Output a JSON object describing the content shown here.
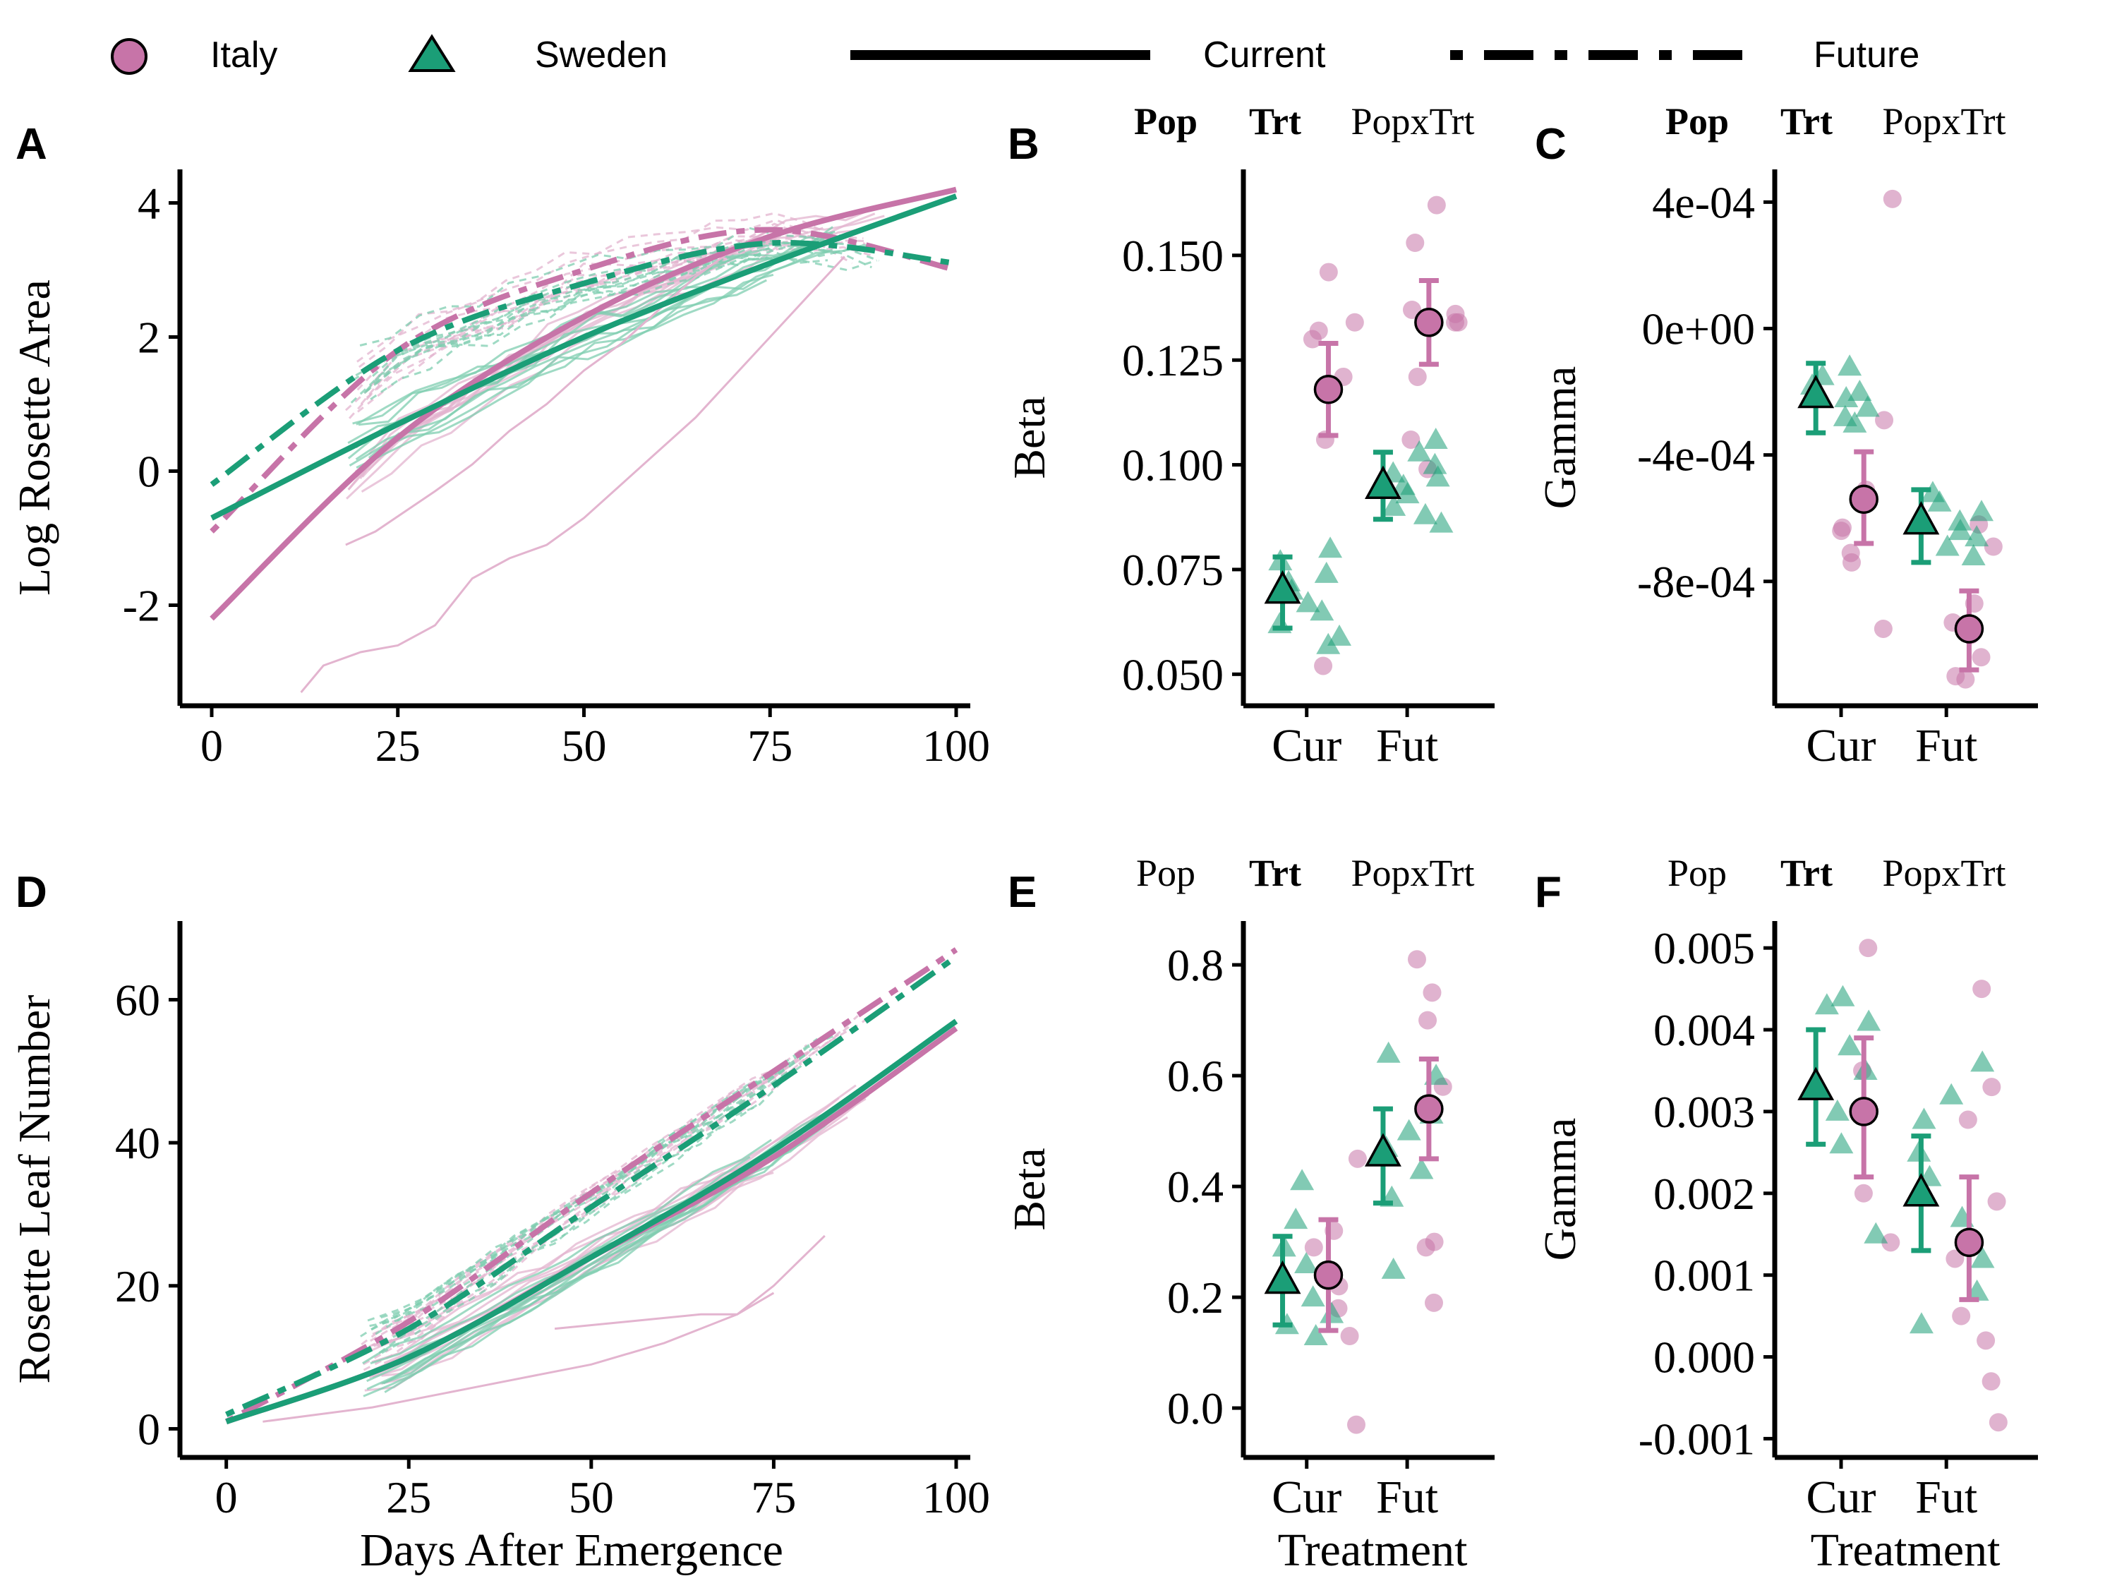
{
  "legend": {
    "italy": "Italy",
    "sweden": "Sweden",
    "current": "Current",
    "future": "Future"
  },
  "colors": {
    "italy": "#c774a8",
    "italy_light": "#e3b4cf",
    "sweden": "#1b9e77",
    "sweden_light": "#7fcdb0"
  },
  "x_label": "Days After Emergence",
  "treatment_label": "Treatment",
  "chart_data": [
    {
      "panel": "A",
      "type": "line",
      "ylabel": "Log Rosette Area",
      "xlim": [
        0,
        100
      ],
      "ylim": [
        -3.5,
        4.5
      ],
      "xticks": [
        "0",
        "25",
        "50",
        "75",
        "100"
      ],
      "yticks": [
        "-2",
        "0",
        "2",
        "4"
      ],
      "series": [
        {
          "name": "Italy",
          "treatment": "Current",
          "x": [
            0,
            25,
            50,
            75,
            100
          ],
          "y": [
            -2.2,
            0.5,
            2.3,
            3.5,
            4.2
          ]
        },
        {
          "name": "Italy",
          "treatment": "Future",
          "x": [
            0,
            25,
            50,
            75,
            100
          ],
          "y": [
            -0.9,
            1.8,
            3.0,
            3.6,
            3.0
          ]
        },
        {
          "name": "Sweden",
          "treatment": "Current",
          "x": [
            0,
            25,
            50,
            75,
            100
          ],
          "y": [
            -0.7,
            0.7,
            2.0,
            3.1,
            4.1
          ]
        },
        {
          "name": "Sweden",
          "treatment": "Future",
          "x": [
            0,
            25,
            50,
            75,
            100
          ],
          "y": [
            -0.2,
            1.8,
            2.8,
            3.4,
            3.1
          ]
        }
      ]
    },
    {
      "panel": "B",
      "type": "scatter",
      "ylabel": "Beta",
      "categories": [
        "Cur",
        "Fut"
      ],
      "ylim": [
        0.045,
        0.168
      ],
      "yticks": [
        "0.050",
        "0.075",
        "0.100",
        "0.125",
        "0.150"
      ],
      "sig": [
        "Pop",
        "Trt",
        "PopxTrt"
      ],
      "sig_bold": [
        true,
        true,
        false
      ],
      "means": [
        {
          "name": "Sweden",
          "category": "Cur",
          "mean": 0.07,
          "lo": 0.061,
          "hi": 0.078
        },
        {
          "name": "Italy",
          "category": "Cur",
          "mean": 0.118,
          "lo": 0.107,
          "hi": 0.129
        },
        {
          "name": "Sweden",
          "category": "Fut",
          "mean": 0.095,
          "lo": 0.087,
          "hi": 0.103
        },
        {
          "name": "Italy",
          "category": "Fut",
          "mean": 0.134,
          "lo": 0.124,
          "hi": 0.144
        }
      ],
      "points": {
        "Italy": {
          "Cur": [
            0.146,
            0.134,
            0.13,
            0.132,
            0.121,
            0.106,
            0.052
          ],
          "Fut": [
            0.162,
            0.153,
            0.137,
            0.136,
            0.134,
            0.134,
            0.121,
            0.106,
            0.099
          ]
        },
        "Sweden": {
          "Cur": [
            0.08,
            0.077,
            0.074,
            0.072,
            0.07,
            0.067,
            0.065,
            0.062,
            0.059,
            0.057
          ],
          "Fut": [
            0.106,
            0.103,
            0.1,
            0.098,
            0.097,
            0.095,
            0.093,
            0.09,
            0.088,
            0.086
          ]
        }
      }
    },
    {
      "panel": "C",
      "type": "scatter",
      "ylabel": "Gamma",
      "categories": [
        "Cur",
        "Fut"
      ],
      "ylim": [
        -0.00116,
        0.00047
      ],
      "yticks": [
        "4e-04",
        "0e+00",
        "-4e-04",
        "-8e-04"
      ],
      "sig": [
        "Pop",
        "Trt",
        "PopxTrt"
      ],
      "sig_bold": [
        true,
        true,
        false
      ],
      "means": [
        {
          "name": "Sweden",
          "category": "Cur",
          "mean": -0.00021,
          "lo": -0.00033,
          "hi": -0.00011
        },
        {
          "name": "Italy",
          "category": "Cur",
          "mean": -0.00054,
          "lo": -0.00068,
          "hi": -0.00039
        },
        {
          "name": "Sweden",
          "category": "Fut",
          "mean": -0.00061,
          "lo": -0.00074,
          "hi": -0.00051
        },
        {
          "name": "Italy",
          "category": "Fut",
          "mean": -0.00095,
          "lo": -0.00108,
          "hi": -0.00083
        }
      ],
      "points": {
        "Italy": {
          "Cur": [
            0.00041,
            -0.00029,
            -0.00051,
            -0.00063,
            -0.00064,
            -0.00071,
            -0.00074,
            -0.00095
          ],
          "Fut": [
            -0.00062,
            -0.00069,
            -0.00087,
            -0.00093,
            -0.00097,
            -0.00104,
            -0.0011,
            -0.00111
          ]
        },
        "Sweden": {
          "Cur": [
            -0.00012,
            -0.00015,
            -0.00018,
            -0.0002,
            -0.00022,
            -0.00025,
            -0.00028,
            -0.0003
          ],
          "Fut": [
            -0.00052,
            -0.00055,
            -0.00058,
            -0.00061,
            -0.00064,
            -0.00066,
            -0.00069,
            -0.00072
          ]
        }
      }
    },
    {
      "panel": "D",
      "type": "line",
      "ylabel": "Rosette Leaf Number",
      "xlim": [
        -2,
        100
      ],
      "ylim": [
        -4,
        71
      ],
      "xticks": [
        "0",
        "25",
        "50",
        "75",
        "100"
      ],
      "yticks": [
        "0",
        "20",
        "40",
        "60"
      ],
      "series": [
        {
          "name": "Italy",
          "treatment": "Current",
          "x": [
            0,
            25,
            50,
            75,
            100
          ],
          "y": [
            1,
            10,
            24,
            38,
            56
          ]
        },
        {
          "name": "Italy",
          "treatment": "Future",
          "x": [
            0,
            25,
            50,
            75,
            100
          ],
          "y": [
            1,
            15,
            33,
            50,
            67
          ]
        },
        {
          "name": "Sweden",
          "treatment": "Current",
          "x": [
            0,
            25,
            50,
            75,
            100
          ],
          "y": [
            1,
            10,
            24,
            39,
            57
          ]
        },
        {
          "name": "Sweden",
          "treatment": "Future",
          "x": [
            0,
            25,
            50,
            75,
            100
          ],
          "y": [
            2,
            14,
            31,
            48,
            66
          ]
        }
      ]
    },
    {
      "panel": "E",
      "type": "scatter",
      "ylabel": "Beta",
      "categories": [
        "Cur",
        "Fut"
      ],
      "ylim": [
        -0.07,
        0.86
      ],
      "yticks": [
        "0.0",
        "0.2",
        "0.4",
        "0.6",
        "0.8"
      ],
      "sig": [
        "Pop",
        "Trt",
        "PopxTrt"
      ],
      "sig_bold": [
        false,
        true,
        false
      ],
      "means": [
        {
          "name": "Sweden",
          "category": "Cur",
          "mean": 0.23,
          "lo": 0.15,
          "hi": 0.31
        },
        {
          "name": "Italy",
          "category": "Cur",
          "mean": 0.24,
          "lo": 0.14,
          "hi": 0.34
        },
        {
          "name": "Sweden",
          "category": "Fut",
          "mean": 0.46,
          "lo": 0.37,
          "hi": 0.54
        },
        {
          "name": "Italy",
          "category": "Fut",
          "mean": 0.54,
          "lo": 0.45,
          "hi": 0.63
        }
      ],
      "points": {
        "Italy": {
          "Cur": [
            0.45,
            0.32,
            0.29,
            0.22,
            0.18,
            0.13,
            -0.03
          ],
          "Fut": [
            0.81,
            0.75,
            0.7,
            0.58,
            0.3,
            0.29,
            0.19
          ]
        },
        "Sweden": {
          "Cur": [
            0.41,
            0.34,
            0.29,
            0.26,
            0.2,
            0.17,
            0.15,
            0.13
          ],
          "Fut": [
            0.64,
            0.6,
            0.53,
            0.5,
            0.47,
            0.43,
            0.38,
            0.25
          ]
        }
      }
    },
    {
      "panel": "F",
      "type": "scatter",
      "ylabel": "Gamma",
      "categories": [
        "Cur",
        "Fut"
      ],
      "ylim": [
        -0.0011,
        0.0052
      ],
      "yticks": [
        "0.005",
        "0.004",
        "0.003",
        "0.002",
        "0.001",
        "0.000",
        "-0.001"
      ],
      "sig": [
        "Pop",
        "Trt",
        "PopxTrt"
      ],
      "sig_bold": [
        false,
        true,
        false
      ],
      "means": [
        {
          "name": "Sweden",
          "category": "Cur",
          "mean": 0.0033,
          "lo": 0.0026,
          "hi": 0.004
        },
        {
          "name": "Italy",
          "category": "Cur",
          "mean": 0.003,
          "lo": 0.0022,
          "hi": 0.0039
        },
        {
          "name": "Sweden",
          "category": "Fut",
          "mean": 0.002,
          "lo": 0.0013,
          "hi": 0.0027
        },
        {
          "name": "Italy",
          "category": "Fut",
          "mean": 0.0014,
          "lo": 0.0007,
          "hi": 0.0022
        }
      ],
      "points": {
        "Italy": {
          "Cur": [
            0.005,
            0.0035,
            0.003,
            0.002,
            0.0014
          ],
          "Fut": [
            0.0045,
            0.0033,
            0.0029,
            0.0019,
            0.0012,
            0.0005,
            0.0002,
            -0.0003,
            -0.0008
          ]
        },
        "Sweden": {
          "Cur": [
            0.0044,
            0.0043,
            0.0041,
            0.0038,
            0.0035,
            0.003,
            0.0026,
            0.0015
          ],
          "Fut": [
            0.0036,
            0.0032,
            0.0029,
            0.0025,
            0.0022,
            0.0017,
            0.0012,
            0.0008,
            0.0004
          ]
        }
      }
    }
  ]
}
